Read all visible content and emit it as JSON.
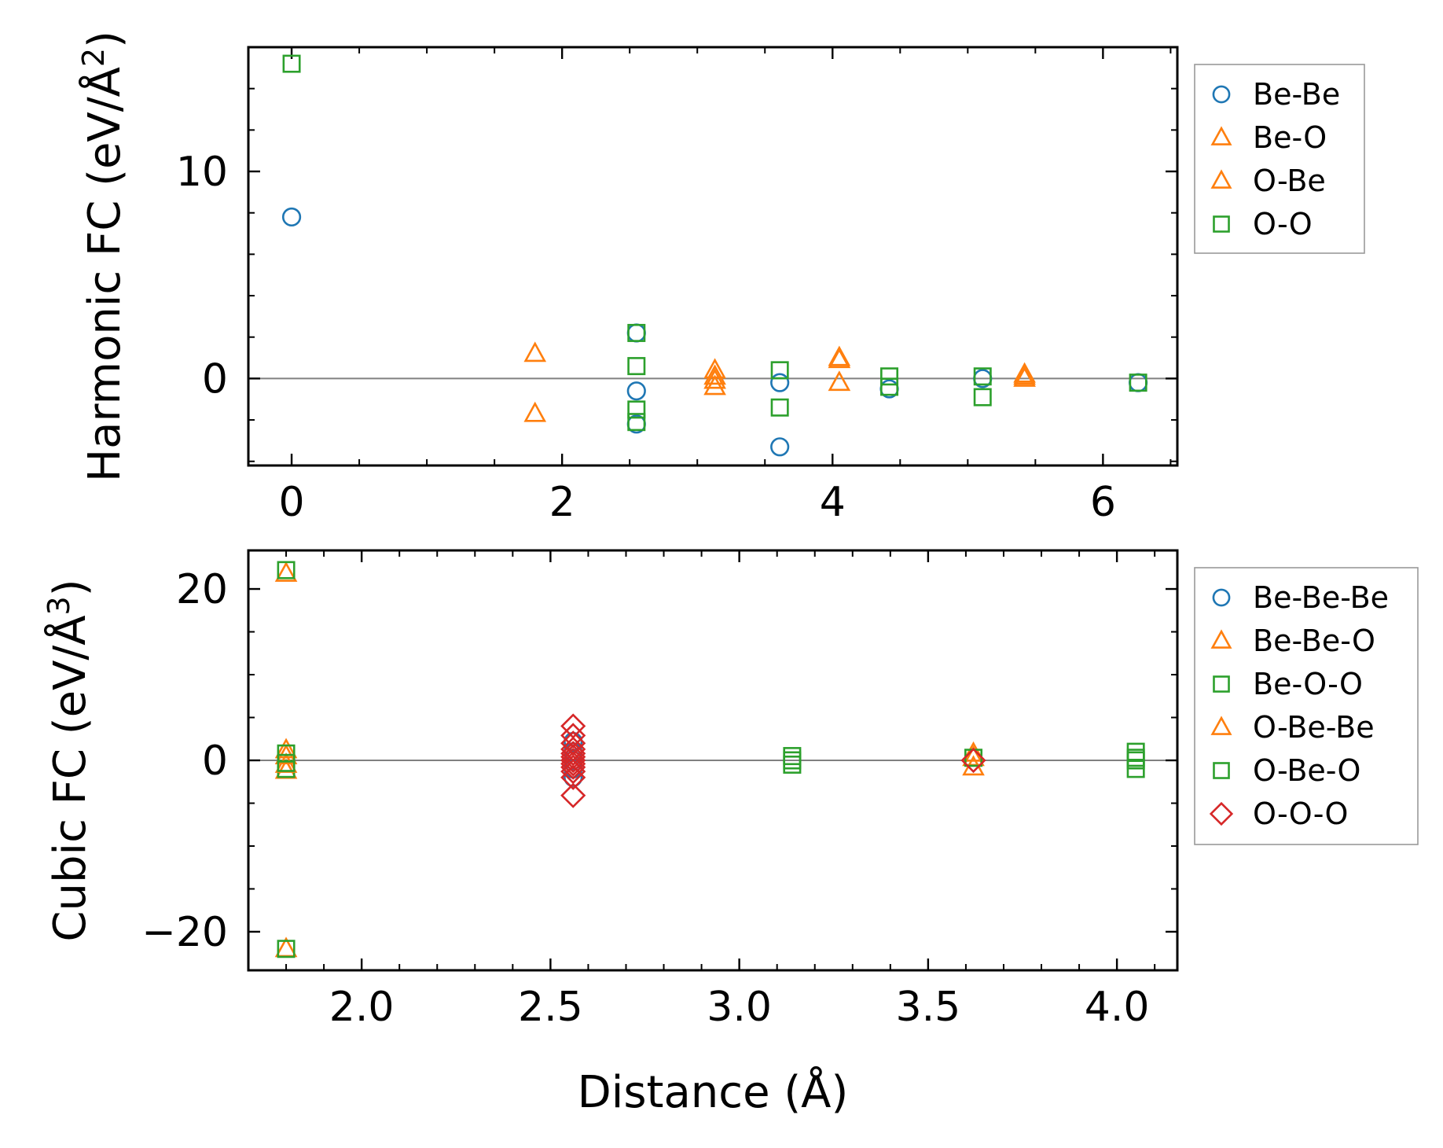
{
  "colors": {
    "Be-Be": "#1f77b4",
    "Be-O": "#ff7f0e",
    "O-Be": "#ff7f0e",
    "O-O": "#2ca02c",
    "Be-Be-Be": "#1f77b4",
    "Be-Be-O": "#ff7f0e",
    "Be-O-O": "#2ca02c",
    "O-Be-Be": "#ff7f0e",
    "O-Be-O": "#2ca02c",
    "O-O-O": "#d62728",
    "zero_line": "#808080"
  },
  "chart_data": [
    {
      "type": "scatter",
      "ylabel": "Harmonic FC (eV/Å",
      "ylabel_sup": "2",
      "ylabel_end": ")",
      "xlim": [
        -0.32,
        6.55
      ],
      "ylim": [
        -4.2,
        16.0
      ],
      "xticks": [
        0,
        2,
        4,
        6
      ],
      "xtick_labels": [
        "0",
        "2",
        "4",
        "6"
      ],
      "yticks": [
        0,
        10
      ],
      "ytick_labels": [
        "0",
        "10"
      ],
      "x_minor_step": 0.5,
      "y_minor_step": 2,
      "zero_line": 0,
      "legend_position": "outside-right",
      "series": [
        {
          "name": "Be-Be",
          "marker": "circle",
          "x": [
            0,
            2.55,
            2.55,
            2.55,
            3.61,
            3.61,
            4.42,
            5.11,
            6.26
          ],
          "y": [
            7.8,
            2.2,
            -0.6,
            -2.2,
            -0.2,
            -3.3,
            -0.5,
            0.0,
            -0.2
          ]
        },
        {
          "name": "Be-O",
          "marker": "triangle",
          "x": [
            1.8,
            1.8,
            3.13,
            3.13,
            3.13,
            4.05,
            4.05,
            5.42,
            5.42
          ],
          "y": [
            1.2,
            -1.7,
            0.4,
            0.1,
            -0.4,
            1.0,
            -0.2,
            0.2,
            0.0
          ]
        },
        {
          "name": "O-Be",
          "marker": "triangle",
          "x": [
            3.13,
            4.05,
            5.42
          ],
          "y": [
            -0.1,
            0.9,
            0.1
          ]
        },
        {
          "name": "O-O",
          "marker": "square",
          "x": [
            0,
            2.55,
            2.55,
            2.55,
            2.55,
            3.61,
            3.61,
            4.42,
            4.42,
            5.11,
            5.11,
            6.26
          ],
          "y": [
            15.2,
            2.2,
            0.6,
            -1.5,
            -2.1,
            0.4,
            -1.4,
            0.1,
            -0.4,
            0.1,
            -0.9,
            -0.2
          ]
        }
      ]
    },
    {
      "type": "scatter",
      "ylabel": "Cubic FC (eV/Å",
      "ylabel_sup": "3",
      "ylabel_end": ")",
      "xlabel": "Distance (Å)",
      "xlim": [
        1.7,
        4.16
      ],
      "ylim": [
        -24.5,
        24.5
      ],
      "xticks": [
        2.0,
        2.5,
        3.0,
        3.5,
        4.0
      ],
      "xtick_labels": [
        "2.0",
        "2.5",
        "3.0",
        "3.5",
        "4.0"
      ],
      "yticks": [
        -20,
        0,
        20
      ],
      "ytick_labels": [
        "−20",
        "0",
        "20"
      ],
      "x_minor_step": 0.1,
      "y_minor_step": 5,
      "zero_line": 0,
      "legend_position": "outside-right",
      "series": [
        {
          "name": "Be-Be-Be",
          "marker": "circle",
          "x": [
            2.56,
            2.56,
            2.56,
            2.56,
            2.56
          ],
          "y": [
            2.2,
            1.0,
            0.0,
            -1.0,
            -2.0
          ]
        },
        {
          "name": "Be-Be-O",
          "marker": "triangle",
          "x": [
            1.8,
            1.8,
            1.8,
            1.8,
            3.62,
            3.62
          ],
          "y": [
            21.8,
            1.2,
            -1.2,
            -22.0,
            0.8,
            -0.8
          ]
        },
        {
          "name": "Be-O-O",
          "marker": "square",
          "x": [
            1.8,
            1.8,
            3.14,
            3.14,
            4.05,
            4.05,
            4.05
          ],
          "y": [
            22.2,
            -1.0,
            0.5,
            -0.5,
            1.0,
            0.0,
            -1.0
          ]
        },
        {
          "name": "O-Be-Be",
          "marker": "triangle",
          "x": [
            1.8,
            1.8,
            3.62
          ],
          "y": [
            0.5,
            -0.5,
            0.3
          ]
        },
        {
          "name": "O-Be-O",
          "marker": "square",
          "x": [
            1.8,
            1.8,
            1.8,
            3.14,
            3.62,
            4.05
          ],
          "y": [
            0.8,
            -0.3,
            -22.0,
            0.0,
            0.3,
            0.3
          ]
        },
        {
          "name": "O-O-O",
          "marker": "diamond",
          "x": [
            2.56,
            2.56,
            2.56,
            2.56,
            2.56,
            2.56,
            2.56,
            2.56,
            2.56,
            2.56,
            2.56,
            2.56,
            3.62
          ],
          "y": [
            4.0,
            2.9,
            2.0,
            1.3,
            0.8,
            0.4,
            0.0,
            -0.4,
            -0.8,
            -1.3,
            -2.0,
            -4.1,
            0.0
          ]
        }
      ]
    }
  ]
}
